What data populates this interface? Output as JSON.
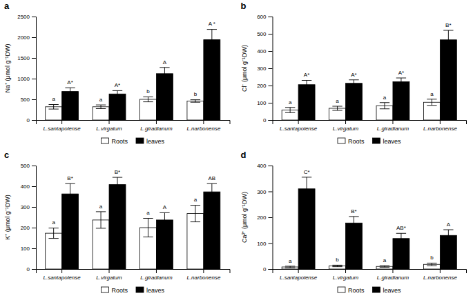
{
  "chart_data": [
    {
      "type": "bar",
      "title": "a",
      "ylabel": "Na⁺ (μmol g⁻¹DW)",
      "categories": [
        "L.santapolense",
        "L.virgatum",
        "L.giradianum",
        "L.narbonense"
      ],
      "series": [
        {
          "name": "Roots",
          "color": "white",
          "values": [
            320,
            320,
            500,
            460
          ],
          "errors": [
            55,
            45,
            60,
            30
          ],
          "annotations": [
            "a",
            "a",
            "b",
            "b"
          ]
        },
        {
          "name": "leaves",
          "color": "black",
          "values": [
            690,
            630,
            1120,
            1940
          ],
          "errors": [
            90,
            80,
            150,
            250
          ],
          "annotations": [
            "A*",
            "A*",
            "A",
            "A *"
          ]
        }
      ],
      "ylim": [
        0,
        2500
      ],
      "yticks": [
        0,
        500,
        1000,
        1500,
        2000,
        2500
      ],
      "grid": false,
      "legend": "bottom"
    },
    {
      "type": "bar",
      "title": "b",
      "ylabel": "Cl⁻ (μmol g⁻¹DW)",
      "categories": [
        "L.santapolense",
        "L.virgatum",
        "L.giradianum",
        "L.narbonense"
      ],
      "series": [
        {
          "name": "Roots",
          "color": "white",
          "values": [
            58,
            68,
            83,
            103
          ],
          "errors": [
            15,
            12,
            18,
            18
          ],
          "annotations": [
            "a",
            "a",
            "a",
            "a"
          ]
        },
        {
          "name": "leaves",
          "color": "black",
          "values": [
            205,
            213,
            222,
            465
          ],
          "errors": [
            25,
            20,
            22,
            55
          ],
          "annotations": [
            "A*",
            "A*",
            "A*",
            "B*"
          ]
        }
      ],
      "ylim": [
        0,
        600
      ],
      "yticks": [
        0,
        100,
        200,
        300,
        400,
        500,
        600
      ],
      "grid": false,
      "legend": "bottom"
    },
    {
      "type": "bar",
      "title": "c",
      "ylabel": "K⁺ (μmol g⁻¹DW)",
      "categories": [
        "L.santapolense",
        "L.virgatum",
        "L.giradianum",
        "L.narbonense"
      ],
      "series": [
        {
          "name": "Roots",
          "color": "white",
          "values": [
            173,
            237,
            200,
            268
          ],
          "errors": [
            25,
            40,
            45,
            40
          ],
          "annotations": [
            "a",
            "a",
            "a",
            "a"
          ]
        },
        {
          "name": "leaves",
          "color": "black",
          "values": [
            363,
            408,
            237,
            373
          ],
          "errors": [
            50,
            35,
            35,
            40
          ],
          "annotations": [
            "B*",
            "B*",
            "A",
            "AB"
          ]
        }
      ],
      "ylim": [
        0,
        500
      ],
      "yticks": [
        0,
        100,
        200,
        300,
        400,
        500
      ],
      "grid": false,
      "legend": "bottom"
    },
    {
      "type": "bar",
      "title": "d",
      "ylabel": "Ca²⁺ (μmol g⁻¹DW)",
      "categories": [
        "L.santapolense",
        "L.virgatum",
        "L.giradianum",
        "L.narbonense"
      ],
      "series": [
        {
          "name": "Roots",
          "color": "white",
          "values": [
            8,
            12,
            10,
            18
          ],
          "errors": [
            3,
            3,
            3,
            5
          ],
          "annotations": [
            "a",
            "b",
            "a",
            "b"
          ]
        },
        {
          "name": "leaves",
          "color": "black",
          "values": [
            310,
            178,
            118,
            130
          ],
          "errors": [
            45,
            25,
            20,
            22
          ],
          "annotations": [
            "C*",
            "B*",
            "AB*",
            "A"
          ]
        }
      ],
      "ylim": [
        0,
        400
      ],
      "yticks": [
        0,
        100,
        200,
        300,
        400
      ],
      "grid": false,
      "legend": "bottom"
    }
  ]
}
